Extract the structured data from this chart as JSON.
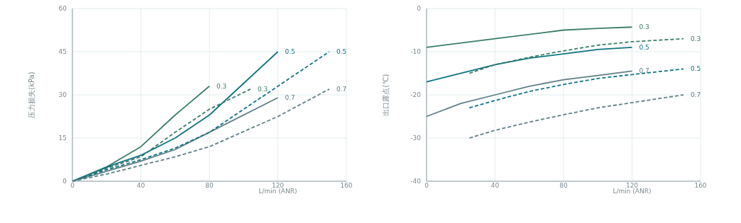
{
  "chart_data": [
    {
      "type": "line",
      "ylabel": "压力损失(kPa)",
      "xlabel": "L/min (ANR)",
      "xlim": [
        0,
        160
      ],
      "xticks": [
        0,
        40,
        80,
        120,
        160
      ],
      "ylim": [
        0,
        60
      ],
      "yticks": [
        0,
        15,
        30,
        45,
        60
      ],
      "grid": true,
      "marker": "none",
      "series": [
        {
          "name": "0.3",
          "color": "#3a7d6a",
          "line_style": "solid",
          "x": [
            0,
            20,
            40,
            60,
            80
          ],
          "values": [
            0,
            5,
            12,
            23,
            33
          ]
        },
        {
          "name": "0.5",
          "color": "#0e7482",
          "line_style": "solid",
          "x": [
            0,
            25,
            40,
            60,
            80,
            100,
            120
          ],
          "values": [
            0,
            6,
            9,
            15,
            23,
            34,
            45
          ]
        },
        {
          "name": "0.7",
          "color": "#5f7f86",
          "line_style": "solid",
          "x": [
            0,
            20,
            40,
            60,
            80,
            120
          ],
          "values": [
            0,
            3.5,
            7,
            11,
            17,
            29
          ]
        },
        {
          "name": "0.3",
          "color": "#3a7d6a",
          "line_style": "dashed",
          "x": [
            0,
            20,
            40,
            60,
            80,
            104
          ],
          "values": [
            0,
            4.5,
            8.5,
            17,
            25,
            32
          ]
        },
        {
          "name": "0.5",
          "color": "#0e7482",
          "line_style": "dashed",
          "x": [
            0,
            20,
            40,
            60,
            80,
            120,
            150
          ],
          "values": [
            0,
            4,
            7.5,
            11.5,
            17,
            33,
            45
          ]
        },
        {
          "name": "0.7",
          "color": "#5f7f86",
          "line_style": "dashed",
          "x": [
            0,
            20,
            40,
            60,
            80,
            120,
            150
          ],
          "values": [
            0,
            2.5,
            5.5,
            8.5,
            12,
            22.5,
            32
          ]
        }
      ]
    },
    {
      "type": "line",
      "ylabel": "出口露点(℃)",
      "xlabel": "L/min (ANR)",
      "xlim": [
        0,
        160
      ],
      "xticks": [
        0,
        40,
        80,
        120,
        160
      ],
      "ylim": [
        -40,
        0
      ],
      "yticks": [
        -40,
        -30,
        -20,
        -10,
        0
      ],
      "grid": true,
      "marker": "none",
      "series": [
        {
          "name": "0.3",
          "color": "#3a7d6a",
          "line_style": "solid",
          "x": [
            0,
            40,
            80,
            100,
            120
          ],
          "values": [
            -9,
            -7,
            -5,
            -4.6,
            -4.3
          ]
        },
        {
          "name": "0.5",
          "color": "#0e7482",
          "line_style": "solid",
          "x": [
            0,
            40,
            60,
            80,
            100,
            120
          ],
          "values": [
            -17,
            -13,
            -11.5,
            -10.5,
            -9.5,
            -9
          ]
        },
        {
          "name": "0.7",
          "color": "#5f7f86",
          "line_style": "solid",
          "x": [
            0,
            20,
            40,
            60,
            80,
            100,
            120
          ],
          "values": [
            -25,
            -22,
            -20,
            -18,
            -16.5,
            -15.5,
            -14.5
          ]
        },
        {
          "name": "0.3",
          "color": "#3a7d6a",
          "line_style": "dashed",
          "x": [
            25,
            40,
            60,
            80,
            100,
            120,
            150
          ],
          "values": [
            -15,
            -13,
            -11.3,
            -9.8,
            -8.5,
            -7.7,
            -7
          ]
        },
        {
          "name": "0.5",
          "color": "#0e7482",
          "line_style": "dashed",
          "x": [
            25,
            40,
            60,
            80,
            100,
            120,
            150
          ],
          "values": [
            -23,
            -21.3,
            -19.2,
            -17.6,
            -16.2,
            -15.3,
            -14
          ]
        },
        {
          "name": "0.7",
          "color": "#5f7f86",
          "line_style": "dashed",
          "x": [
            25,
            40,
            60,
            80,
            100,
            120,
            150
          ],
          "values": [
            -30,
            -28.2,
            -26.3,
            -24.6,
            -23,
            -21.8,
            -20
          ]
        }
      ]
    }
  ]
}
